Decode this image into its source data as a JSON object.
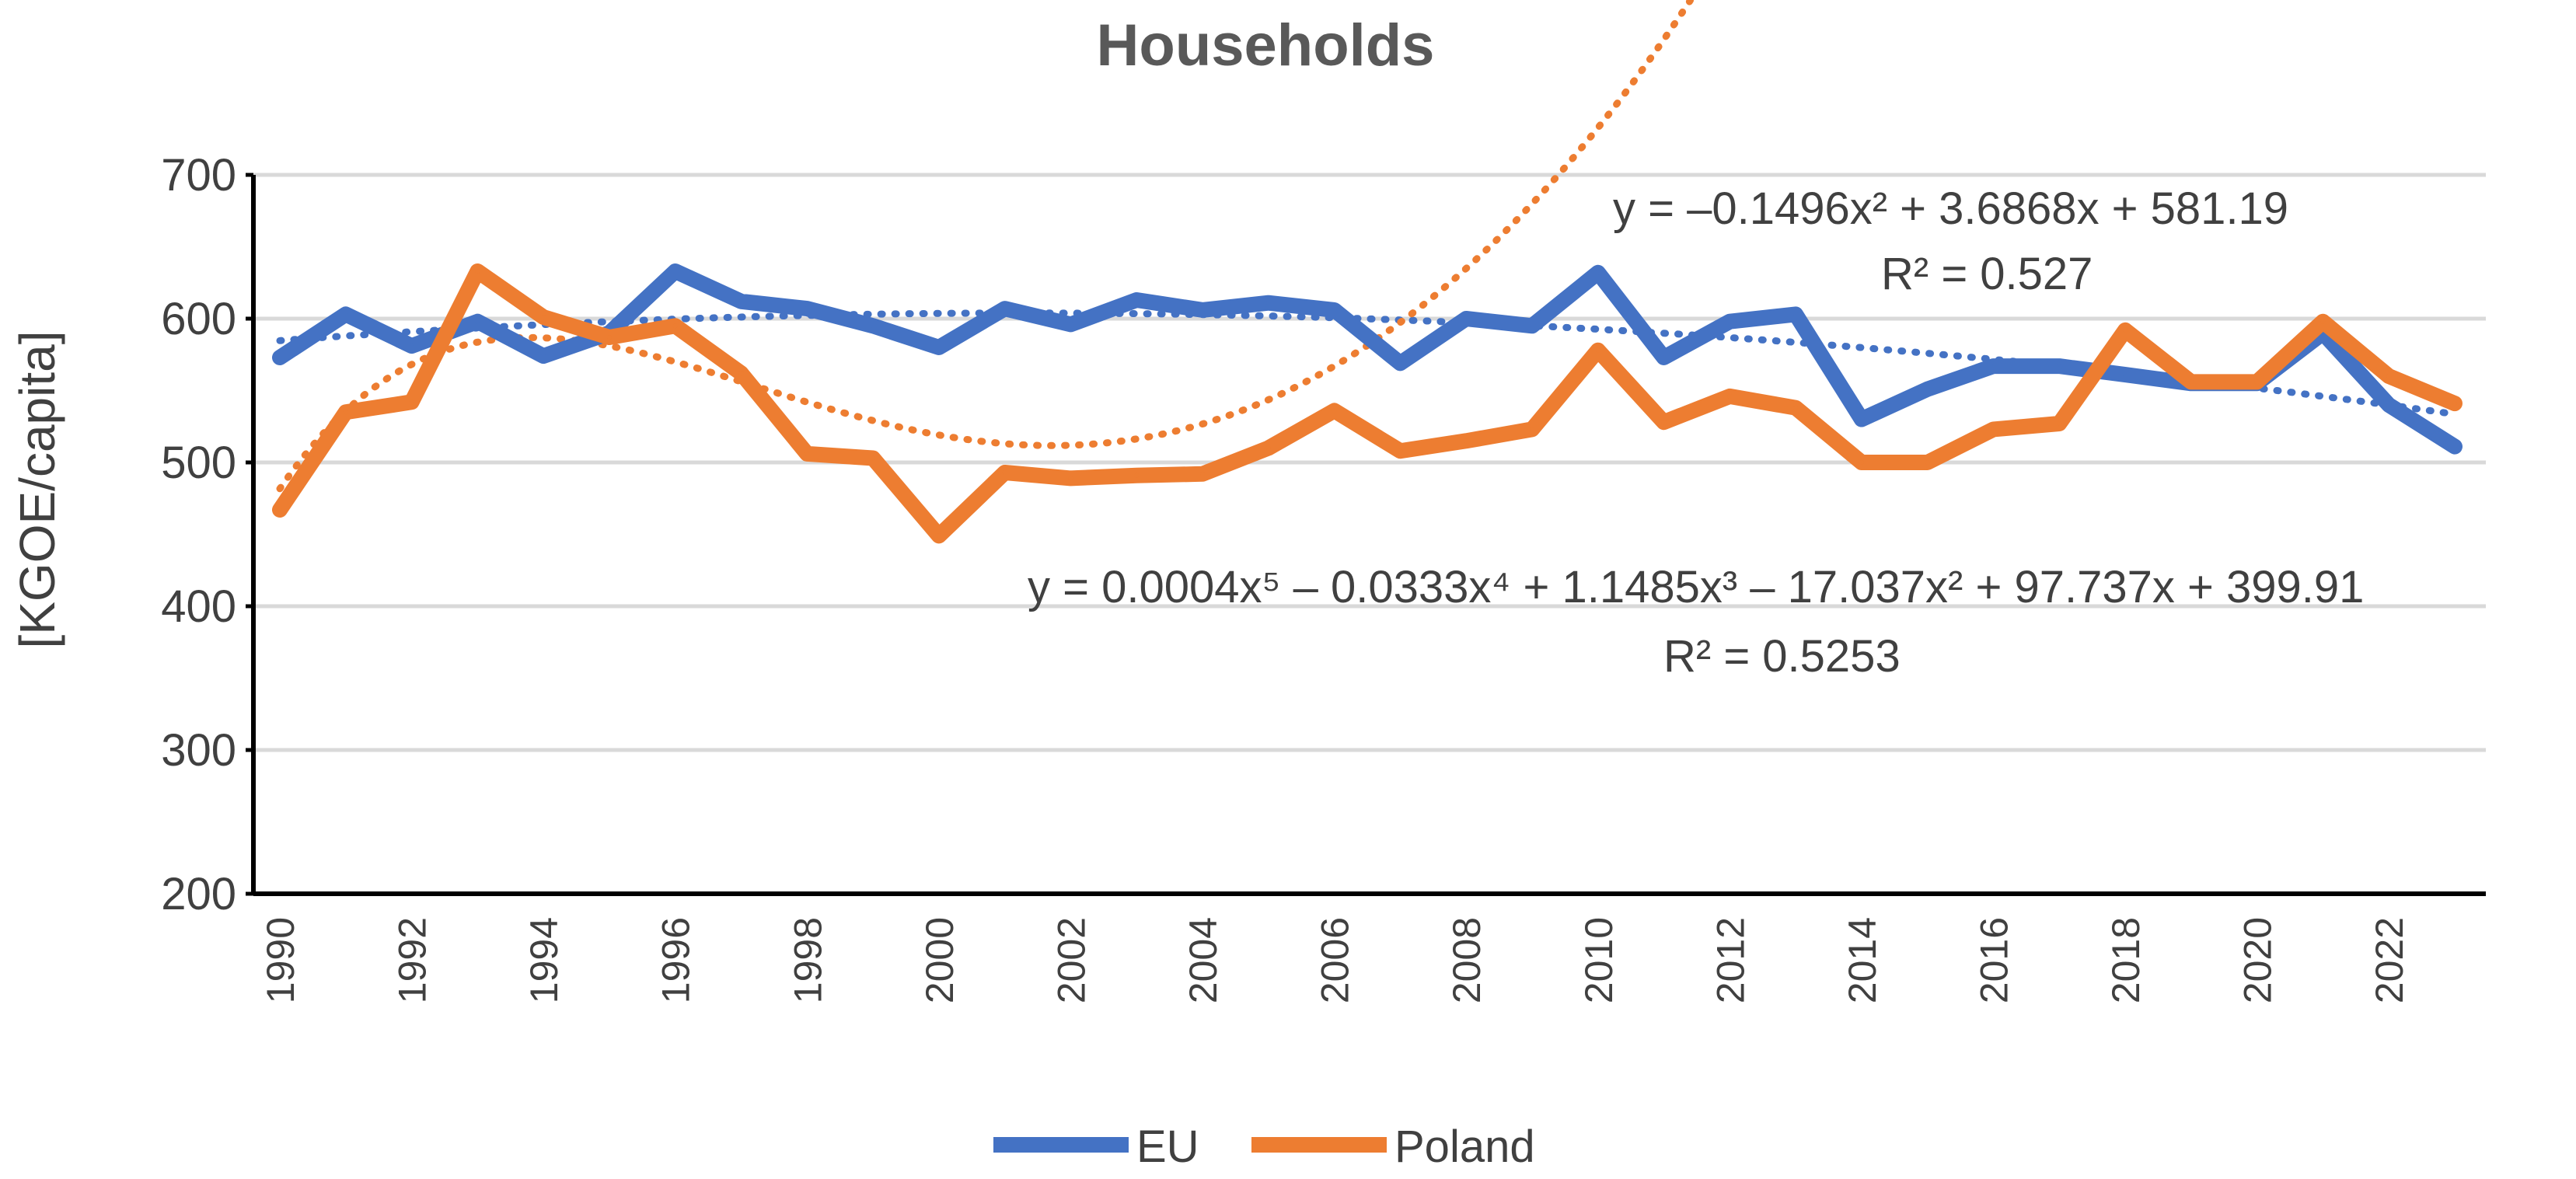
{
  "chart_data": {
    "type": "line",
    "title": "Households",
    "xlabel": "",
    "ylabel": "[KGOE/capita]",
    "ylim": [
      200,
      700
    ],
    "yticks": [
      "200",
      "300",
      "400",
      "500",
      "600",
      "700"
    ],
    "x": [
      1990,
      1991,
      1992,
      1993,
      1994,
      1995,
      1996,
      1997,
      1998,
      1999,
      2000,
      2001,
      2002,
      2003,
      2004,
      2005,
      2006,
      2007,
      2008,
      2009,
      2010,
      2011,
      2012,
      2013,
      2014,
      2015,
      2016,
      2017,
      2018,
      2019,
      2020,
      2021,
      2022,
      2023
    ],
    "xtick_labels": [
      "1990",
      "1992",
      "1994",
      "1996",
      "1998",
      "2000",
      "2002",
      "2004",
      "2006",
      "2008",
      "2010",
      "2012",
      "2014",
      "2016",
      "2018",
      "2020",
      "2022"
    ],
    "grid": true,
    "legend_position": "bottom",
    "series": [
      {
        "name": "EU",
        "color": "#4472C4",
        "values": [
          573,
          603,
          581,
          598,
          574,
          590,
          633,
          612,
          607,
          595,
          580,
          607,
          596,
          613,
          606,
          611,
          606,
          569,
          600,
          595,
          632,
          573,
          598,
          603,
          530,
          551,
          567,
          567,
          561,
          555,
          555,
          590,
          540,
          511
        ]
      },
      {
        "name": "Poland",
        "color": "#ED7D31",
        "values": [
          467,
          535,
          542,
          633,
          601,
          587,
          595,
          562,
          506,
          503,
          449,
          493,
          489,
          491,
          492,
          510,
          536,
          508,
          515,
          523,
          578,
          528,
          546,
          538,
          500,
          500,
          523,
          527,
          592,
          556,
          556,
          598,
          560,
          541
        ]
      }
    ],
    "trendlines": [
      {
        "series": "EU",
        "kind": "polynomial-2",
        "color": "#4472C4",
        "equation": "y = –0.1496x² + 3.6868x + 581.19",
        "r_squared": "R² = 0.527",
        "coefficients_high_to_low": [
          -0.1496,
          3.6868,
          581.19
        ]
      },
      {
        "series": "Poland",
        "kind": "polynomial-5",
        "color": "#ED7D31",
        "equation": "y = 0.0004x⁵ – 0.0333x⁴ + 1.1485x³ – 17.037x² + 97.737x + 399.91",
        "r_squared": "R² = 0.5253",
        "coefficients_high_to_low": [
          0.0004,
          -0.0333,
          1.1485,
          -17.037,
          97.737,
          399.91
        ]
      }
    ]
  }
}
